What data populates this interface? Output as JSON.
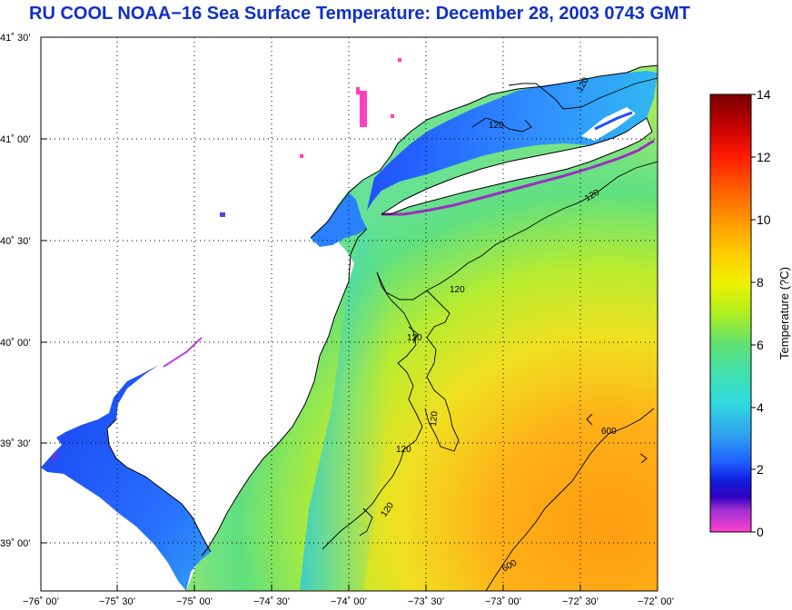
{
  "title": "RU COOL  NOAA−16  Sea Surface Temperature:  December 28, 2003 0743 GMT",
  "lon_ticks": [
    "−76˚ 00’",
    "−75˚ 30’",
    "−75˚ 00’",
    "−74˚ 30’",
    "−74˚ 00’",
    "−73˚ 30’",
    "−73˚ 00’",
    "−72˚ 30’",
    "−72˚ 00’"
  ],
  "lat_ticks": [
    "41˚ 30’",
    "41˚ 00’",
    "40˚ 30’",
    "40˚ 00’",
    "39˚ 30’",
    "39˚ 00’"
  ],
  "colorbar": {
    "label": "Temperature (?C)",
    "ticks": [
      "14",
      "12",
      "10",
      "8",
      "6",
      "4",
      "2",
      "0"
    ],
    "colors": [
      "#7a0000",
      "#c00000",
      "#ff2000",
      "#ff6a00",
      "#ffa500",
      "#ffd200",
      "#f0f000",
      "#b8f000",
      "#70e060",
      "#40e0a0",
      "#30d8d8",
      "#30a8f0",
      "#2070ff",
      "#1030e0",
      "#2000c0",
      "#8030d0",
      "#ff40c0"
    ]
  },
  "contour_labels": {
    "c1": "120",
    "c2": "120",
    "c3": "120",
    "c4": "120",
    "c5": "120",
    "c6": "120",
    "c7": "120",
    "c8": "120",
    "c9": "600",
    "c10": "600"
  },
  "colors": {
    "title": "#1030c8",
    "land": "#ffffff",
    "contour": "#000000"
  }
}
